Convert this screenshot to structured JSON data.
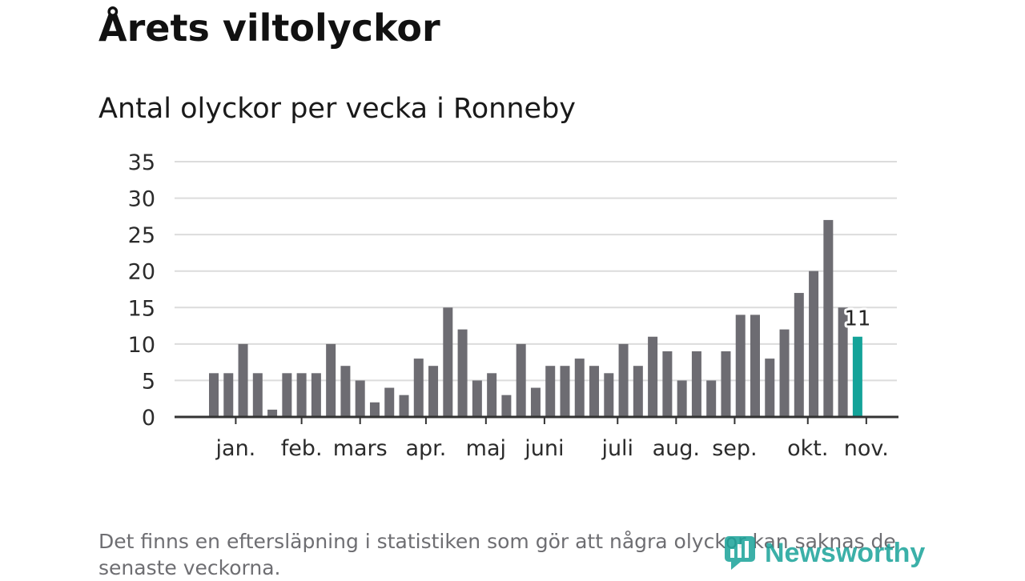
{
  "title": "Årets viltolyckor",
  "subtitle": "Antal olyckor per vecka i Ronneby",
  "footnote": "Det finns en eftersläpning i statistiken som gör att några olyckor kan saknas de senaste veckorna.",
  "brand": "Newsworthy",
  "colors": {
    "bar": "#6d6c72",
    "highlight": "#14a399",
    "grid": "#dcdcdc",
    "axis": "#333333"
  },
  "chart_data": {
    "type": "bar",
    "title": "Antal olyckor per vecka i Ronneby",
    "xlabel": "",
    "ylabel": "",
    "ylim": [
      0,
      35
    ],
    "yticks": [
      "0",
      "5",
      "10",
      "15",
      "20",
      "25",
      "30",
      "35"
    ],
    "week_labels_visible": false,
    "month_labels": [
      {
        "label": "jan.",
        "at_week": 1.5
      },
      {
        "label": "feb.",
        "at_week": 6
      },
      {
        "label": "mars",
        "at_week": 10
      },
      {
        "label": "apr.",
        "at_week": 14.5
      },
      {
        "label": "maj",
        "at_week": 18.6
      },
      {
        "label": "juni",
        "at_week": 22.6
      },
      {
        "label": "juli",
        "at_week": 27.6
      },
      {
        "label": "aug.",
        "at_week": 31.6
      },
      {
        "label": "sep.",
        "at_week": 35.6
      },
      {
        "label": "okt.",
        "at_week": 40.6
      },
      {
        "label": "nov.",
        "at_week": 44.6
      }
    ],
    "values": [
      6,
      6,
      10,
      6,
      1,
      6,
      6,
      6,
      10,
      7,
      5,
      2,
      4,
      3,
      8,
      7,
      15,
      12,
      5,
      6,
      3,
      10,
      4,
      7,
      7,
      8,
      7,
      6,
      10,
      7,
      11,
      9,
      5,
      9,
      5,
      9,
      14,
      14,
      8,
      12,
      17,
      20,
      27,
      15,
      11
    ],
    "highlight_last": true,
    "last_value_label": "11"
  }
}
